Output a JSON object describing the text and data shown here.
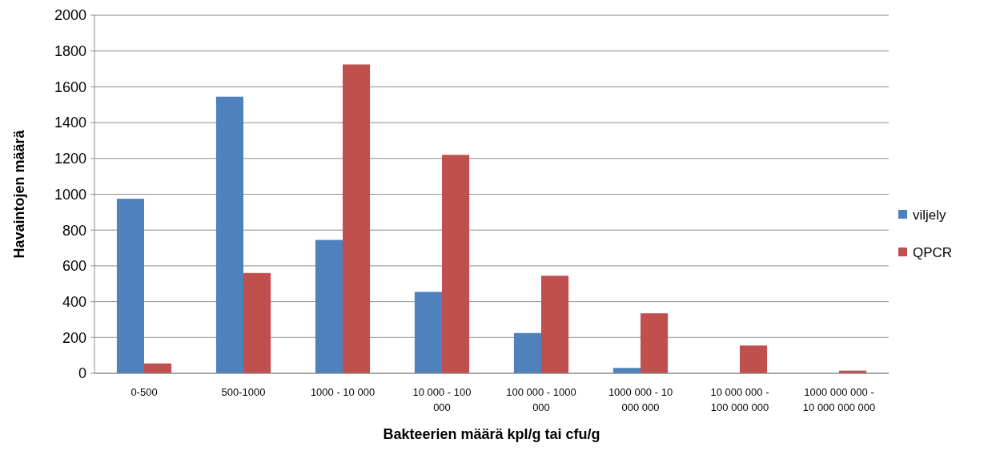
{
  "chart_data": {
    "type": "bar",
    "xlabel": "Bakteerien määrä  kpl/g tai cfu/g",
    "ylabel": "Havaintojen määrä",
    "categories": [
      "0-500",
      "500-1000",
      "1000 - 10 000",
      "10 000 - 100 000",
      "100 000 - 1000 000",
      "1000 000 - 10 000 000",
      "10 000 000 - 100 000 000",
      "1000 000 000 - 10 000 000 000"
    ],
    "series": [
      {
        "name": "viljely",
        "color": "#4f81bd",
        "values": [
          975,
          1545,
          745,
          455,
          225,
          30,
          0,
          0
        ]
      },
      {
        "name": "QPCR",
        "color": "#c0504d",
        "values": [
          55,
          560,
          1725,
          1220,
          545,
          335,
          155,
          15
        ]
      }
    ],
    "ylim": [
      0,
      2000
    ],
    "yticks": [
      0,
      200,
      400,
      600,
      800,
      1000,
      1200,
      1400,
      1600,
      1800,
      2000
    ],
    "grid": "y",
    "legend": "right"
  }
}
